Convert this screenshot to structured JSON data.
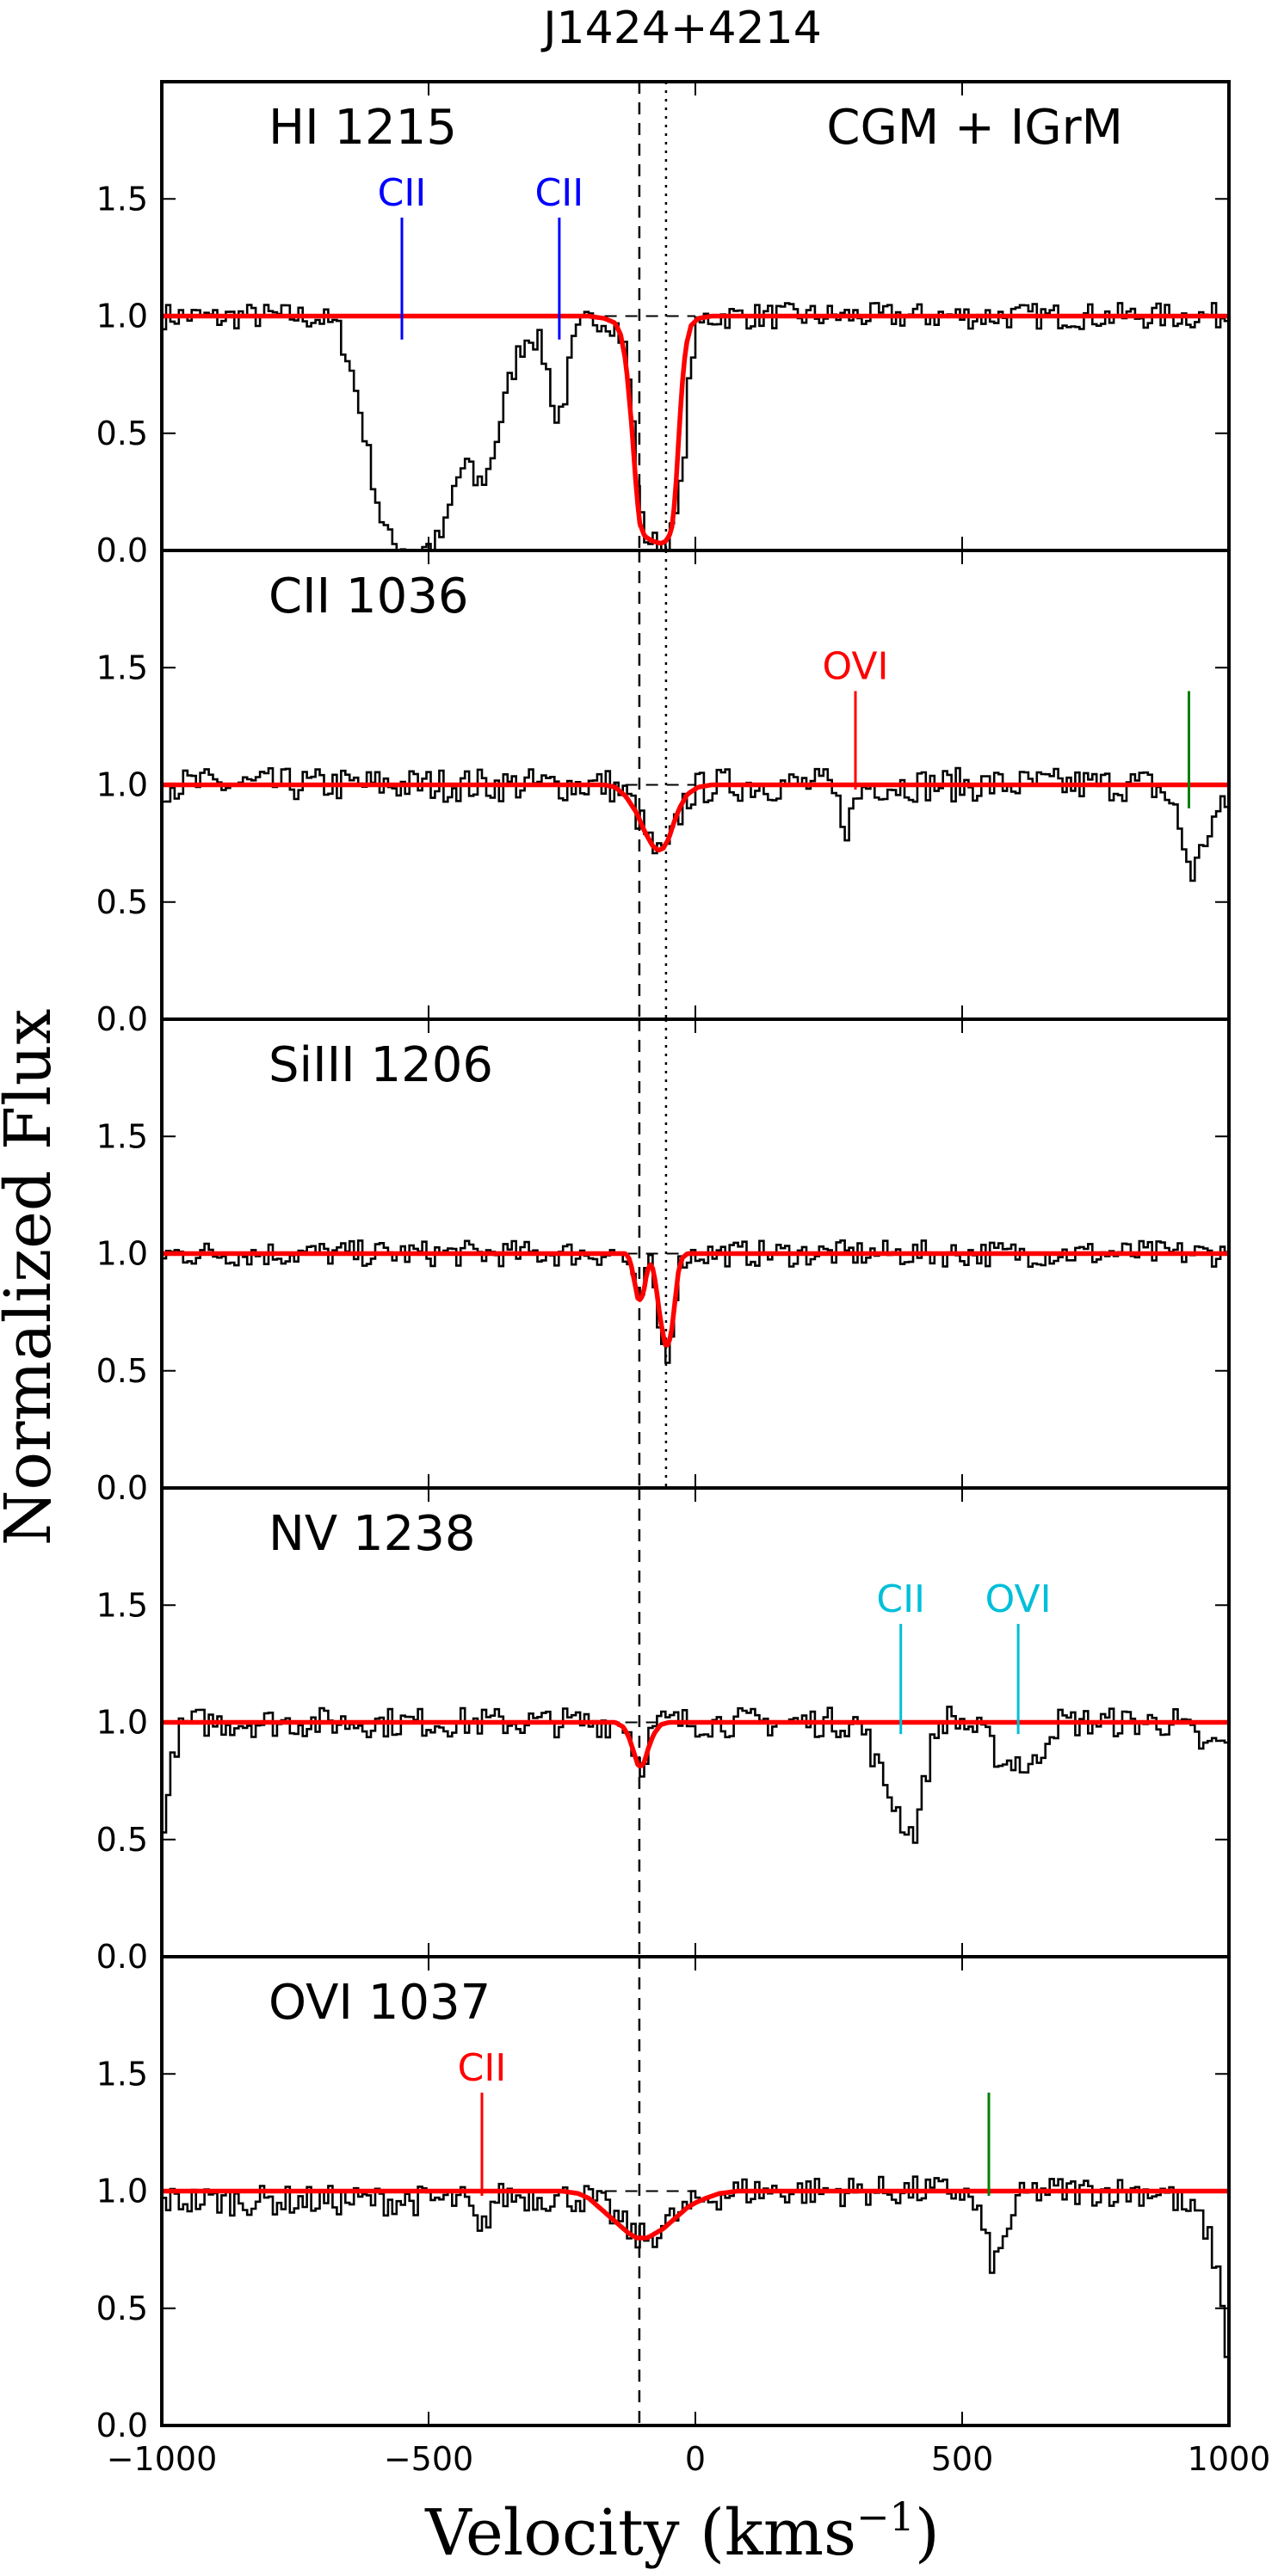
{
  "chart_data": {
    "type": "line",
    "title": "J1424+4214",
    "xlabel": "Velocity (kms",
    "xlabel_sup": "−1",
    "xlabel_close": ")",
    "ylabel": "Normalized Flux",
    "xlim": [
      -1000,
      1000
    ],
    "ylim": [
      0.0,
      2.0
    ],
    "x_ticks": [
      -1000,
      -500,
      0,
      500,
      1000
    ],
    "x_tick_labels": [
      "−1000",
      "−500",
      "0",
      "500",
      "1000"
    ],
    "y_ticks": [
      0.0,
      0.5,
      1.0,
      1.5
    ],
    "y_tick_labels": [
      "0.0",
      "0.5",
      "1.0",
      "1.5"
    ],
    "reference_lines": {
      "dashed_x": -105,
      "dotted_x": -55
    },
    "colors": {
      "data": "#000000",
      "model": "#ff0000",
      "blue": "#0000ff",
      "cyan": "#00bfd8",
      "red": "#ff0000",
      "green": "#008000"
    },
    "panels": [
      {
        "label": "HI 1215",
        "region_label": "CGM + IGrM",
        "show_dotted": true,
        "spectrum": [
          [
            -1000,
            1.0
          ],
          [
            -950,
            1.0
          ],
          [
            -900,
            0.99
          ],
          [
            -850,
            1.0
          ],
          [
            -800,
            1.0
          ],
          [
            -750,
            1.0
          ],
          [
            -700,
            0.99
          ],
          [
            -670,
            0.95
          ],
          [
            -650,
            0.82
          ],
          [
            -630,
            0.62
          ],
          [
            -610,
            0.38
          ],
          [
            -590,
            0.15
          ],
          [
            -570,
            0.03
          ],
          [
            -540,
            0.01
          ],
          [
            -510,
            0.01
          ],
          [
            -490,
            0.02
          ],
          [
            -470,
            0.08
          ],
          [
            -450,
            0.28
          ],
          [
            -430,
            0.38
          ],
          [
            -410,
            0.28
          ],
          [
            -390,
            0.32
          ],
          [
            -370,
            0.5
          ],
          [
            -350,
            0.7
          ],
          [
            -330,
            0.85
          ],
          [
            -310,
            0.93
          ],
          [
            -290,
            0.88
          ],
          [
            -275,
            0.75
          ],
          [
            -260,
            0.55
          ],
          [
            -245,
            0.65
          ],
          [
            -230,
            0.86
          ],
          [
            -215,
            0.95
          ],
          [
            -200,
            0.98
          ],
          [
            -180,
            0.99
          ],
          [
            -160,
            0.98
          ],
          [
            -145,
            0.95
          ],
          [
            -130,
            0.85
          ],
          [
            -120,
            0.65
          ],
          [
            -110,
            0.35
          ],
          [
            -100,
            0.12
          ],
          [
            -90,
            0.05
          ],
          [
            -75,
            0.03
          ],
          [
            -60,
            0.03
          ],
          [
            -45,
            0.06
          ],
          [
            -30,
            0.2
          ],
          [
            -20,
            0.45
          ],
          [
            -10,
            0.75
          ],
          [
            0,
            0.93
          ],
          [
            20,
            0.99
          ],
          [
            50,
            1.0
          ],
          [
            100,
            1.0
          ],
          [
            200,
            1.0
          ],
          [
            300,
            1.0
          ],
          [
            400,
            1.0
          ],
          [
            500,
            1.0
          ],
          [
            600,
            1.0
          ],
          [
            700,
            1.0
          ],
          [
            800,
            1.0
          ],
          [
            900,
            1.0
          ],
          [
            1000,
            1.0
          ]
        ],
        "model": [
          [
            -1000,
            1.0
          ],
          [
            -200,
            1.0
          ],
          [
            -170,
            0.99
          ],
          [
            -150,
            0.97
          ],
          [
            -140,
            0.92
          ],
          [
            -130,
            0.8
          ],
          [
            -120,
            0.55
          ],
          [
            -112,
            0.3
          ],
          [
            -105,
            0.12
          ],
          [
            -95,
            0.06
          ],
          [
            -80,
            0.04
          ],
          [
            -65,
            0.03
          ],
          [
            -55,
            0.04
          ],
          [
            -45,
            0.08
          ],
          [
            -38,
            0.22
          ],
          [
            -32,
            0.45
          ],
          [
            -25,
            0.7
          ],
          [
            -18,
            0.87
          ],
          [
            -8,
            0.96
          ],
          [
            5,
            0.99
          ],
          [
            30,
            1.0
          ],
          [
            1000,
            1.0
          ]
        ],
        "noise": 0.035,
        "markers": [
          {
            "x": -550,
            "label": "CII",
            "color": "#0000ff",
            "y_top": 1.42,
            "y_bottom": 0.9
          },
          {
            "x": -255,
            "label": "CII",
            "color": "#0000ff",
            "y_top": 1.42,
            "y_bottom": 0.9
          }
        ]
      },
      {
        "label": "CII 1036",
        "show_dotted": true,
        "spectrum": [
          [
            -1000,
            1.0
          ],
          [
            -200,
            1.0
          ],
          [
            -160,
            1.0
          ],
          [
            -140,
            0.97
          ],
          [
            -120,
            0.93
          ],
          [
            -100,
            0.83
          ],
          [
            -80,
            0.73
          ],
          [
            -65,
            0.69
          ],
          [
            -50,
            0.72
          ],
          [
            -35,
            0.83
          ],
          [
            -20,
            0.93
          ],
          [
            0,
            0.98
          ],
          [
            40,
            1.0
          ],
          [
            250,
            1.0
          ],
          [
            270,
            0.9
          ],
          [
            285,
            0.82
          ],
          [
            300,
            0.92
          ],
          [
            320,
            1.0
          ],
          [
            850,
            1.0
          ],
          [
            880,
            0.97
          ],
          [
            900,
            0.88
          ],
          [
            915,
            0.75
          ],
          [
            930,
            0.62
          ],
          [
            945,
            0.68
          ],
          [
            960,
            0.8
          ],
          [
            980,
            0.88
          ],
          [
            1000,
            0.9
          ]
        ],
        "model": [
          [
            -1000,
            1.0
          ],
          [
            -170,
            1.0
          ],
          [
            -150,
            0.99
          ],
          [
            -130,
            0.95
          ],
          [
            -110,
            0.88
          ],
          [
            -95,
            0.8
          ],
          [
            -80,
            0.74
          ],
          [
            -70,
            0.72
          ],
          [
            -60,
            0.73
          ],
          [
            -50,
            0.77
          ],
          [
            -40,
            0.84
          ],
          [
            -30,
            0.9
          ],
          [
            -15,
            0.96
          ],
          [
            5,
            0.99
          ],
          [
            30,
            1.0
          ],
          [
            1000,
            1.0
          ]
        ],
        "noise": 0.045,
        "markers": [
          {
            "x": 300,
            "label": "OVI",
            "color": "#ff0000",
            "y_top": 1.4,
            "y_bottom": 0.98
          },
          {
            "x": 925,
            "label": "",
            "color": "#008000",
            "y_top": 1.4,
            "y_bottom": 0.9
          }
        ]
      },
      {
        "label": "SiIII 1206",
        "show_dotted": true,
        "spectrum": [
          [
            -1000,
            1.0
          ],
          [
            -140,
            1.0
          ],
          [
            -125,
            0.95
          ],
          [
            -115,
            0.86
          ],
          [
            -105,
            0.78
          ],
          [
            -95,
            0.88
          ],
          [
            -85,
            0.95
          ],
          [
            -78,
            0.88
          ],
          [
            -70,
            0.72
          ],
          [
            -60,
            0.6
          ],
          [
            -50,
            0.58
          ],
          [
            -42,
            0.7
          ],
          [
            -35,
            0.88
          ],
          [
            -25,
            0.98
          ],
          [
            0,
            1.0
          ],
          [
            1000,
            1.0
          ]
        ],
        "model": [
          [
            -1000,
            1.0
          ],
          [
            -130,
            1.0
          ],
          [
            -122,
            0.97
          ],
          [
            -115,
            0.89
          ],
          [
            -108,
            0.81
          ],
          [
            -102,
            0.8
          ],
          [
            -96,
            0.85
          ],
          [
            -90,
            0.93
          ],
          [
            -82,
            0.96
          ],
          [
            -75,
            0.88
          ],
          [
            -68,
            0.76
          ],
          [
            -62,
            0.67
          ],
          [
            -56,
            0.61
          ],
          [
            -50,
            0.61
          ],
          [
            -44,
            0.68
          ],
          [
            -38,
            0.8
          ],
          [
            -32,
            0.92
          ],
          [
            -25,
            0.98
          ],
          [
            -15,
            1.0
          ],
          [
            1000,
            1.0
          ]
        ],
        "noise": 0.035,
        "markers": []
      },
      {
        "label": "NV 1238",
        "show_dotted": false,
        "spectrum": [
          [
            -1000,
            0.55
          ],
          [
            -990,
            0.65
          ],
          [
            -975,
            0.9
          ],
          [
            -960,
            0.98
          ],
          [
            -940,
            1.0
          ],
          [
            -130,
            1.0
          ],
          [
            -120,
            0.93
          ],
          [
            -110,
            0.85
          ],
          [
            -100,
            0.82
          ],
          [
            -90,
            0.9
          ],
          [
            -80,
            0.97
          ],
          [
            -60,
            1.0
          ],
          [
            300,
            1.0
          ],
          [
            320,
            0.95
          ],
          [
            340,
            0.82
          ],
          [
            360,
            0.72
          ],
          [
            380,
            0.62
          ],
          [
            395,
            0.55
          ],
          [
            410,
            0.52
          ],
          [
            420,
            0.62
          ],
          [
            435,
            0.8
          ],
          [
            450,
            0.96
          ],
          [
            470,
            1.02
          ],
          [
            500,
            1.0
          ],
          [
            540,
            0.95
          ],
          [
            560,
            0.88
          ],
          [
            580,
            0.82
          ],
          [
            600,
            0.85
          ],
          [
            620,
            0.8
          ],
          [
            640,
            0.82
          ],
          [
            660,
            0.95
          ],
          [
            680,
            1.0
          ],
          [
            900,
            1.0
          ],
          [
            940,
            0.93
          ],
          [
            960,
            0.88
          ],
          [
            980,
            0.92
          ],
          [
            1000,
            0.88
          ]
        ],
        "model": [
          [
            -1000,
            1.0
          ],
          [
            -150,
            1.0
          ],
          [
            -135,
            0.98
          ],
          [
            -125,
            0.94
          ],
          [
            -115,
            0.87
          ],
          [
            -108,
            0.82
          ],
          [
            -102,
            0.81
          ],
          [
            -96,
            0.83
          ],
          [
            -88,
            0.89
          ],
          [
            -78,
            0.95
          ],
          [
            -65,
            0.99
          ],
          [
            -50,
            1.0
          ],
          [
            1000,
            1.0
          ]
        ],
        "noise": 0.04,
        "markers": [
          {
            "x": 385,
            "label": "CII",
            "color": "#00bfd8",
            "y_top": 1.42,
            "y_bottom": 0.95
          },
          {
            "x": 605,
            "label": "OVI",
            "color": "#00bfd8",
            "y_top": 1.42,
            "y_bottom": 0.95
          }
        ]
      },
      {
        "label": "OVI 1037",
        "show_dotted": false,
        "spectrum": [
          [
            -1000,
            0.96
          ],
          [
            -430,
            0.96
          ],
          [
            -415,
            0.88
          ],
          [
            -405,
            0.8
          ],
          [
            -395,
            0.85
          ],
          [
            -380,
            0.95
          ],
          [
            -360,
            0.98
          ],
          [
            -200,
            0.97
          ],
          [
            -170,
            0.93
          ],
          [
            -140,
            0.87
          ],
          [
            -120,
            0.82
          ],
          [
            -105,
            0.8
          ],
          [
            -90,
            0.8
          ],
          [
            -70,
            0.83
          ],
          [
            -50,
            0.87
          ],
          [
            -30,
            0.9
          ],
          [
            -10,
            0.93
          ],
          [
            10,
            0.96
          ],
          [
            40,
            0.98
          ],
          [
            80,
            1.0
          ],
          [
            500,
            1.0
          ],
          [
            530,
            0.92
          ],
          [
            545,
            0.78
          ],
          [
            560,
            0.68
          ],
          [
            575,
            0.75
          ],
          [
            590,
            0.88
          ],
          [
            610,
            0.97
          ],
          [
            640,
            1.0
          ],
          [
            880,
            1.0
          ],
          [
            900,
            0.96
          ],
          [
            920,
            0.92
          ],
          [
            940,
            0.9
          ],
          [
            955,
            0.85
          ],
          [
            965,
            0.78
          ],
          [
            975,
            0.7
          ],
          [
            985,
            0.58
          ],
          [
            992,
            0.45
          ],
          [
            997,
            0.3
          ],
          [
            1000,
            0.2
          ]
        ],
        "model": [
          [
            -1000,
            1.0
          ],
          [
            -250,
            1.0
          ],
          [
            -220,
            0.99
          ],
          [
            -200,
            0.97
          ],
          [
            -180,
            0.93
          ],
          [
            -160,
            0.89
          ],
          [
            -140,
            0.85
          ],
          [
            -125,
            0.82
          ],
          [
            -110,
            0.8
          ],
          [
            -100,
            0.8
          ],
          [
            -90,
            0.8
          ],
          [
            -75,
            0.82
          ],
          [
            -60,
            0.84
          ],
          [
            -45,
            0.87
          ],
          [
            -30,
            0.9
          ],
          [
            -15,
            0.93
          ],
          [
            0,
            0.95
          ],
          [
            20,
            0.97
          ],
          [
            45,
            0.99
          ],
          [
            80,
            1.0
          ],
          [
            1000,
            1.0
          ]
        ],
        "noise": 0.04,
        "markers": [
          {
            "x": -400,
            "label": "CII",
            "color": "#ff0000",
            "y_top": 1.42,
            "y_bottom": 0.98
          },
          {
            "x": 550,
            "label": "",
            "color": "#008000",
            "y_top": 1.42,
            "y_bottom": 0.98
          }
        ]
      }
    ]
  }
}
